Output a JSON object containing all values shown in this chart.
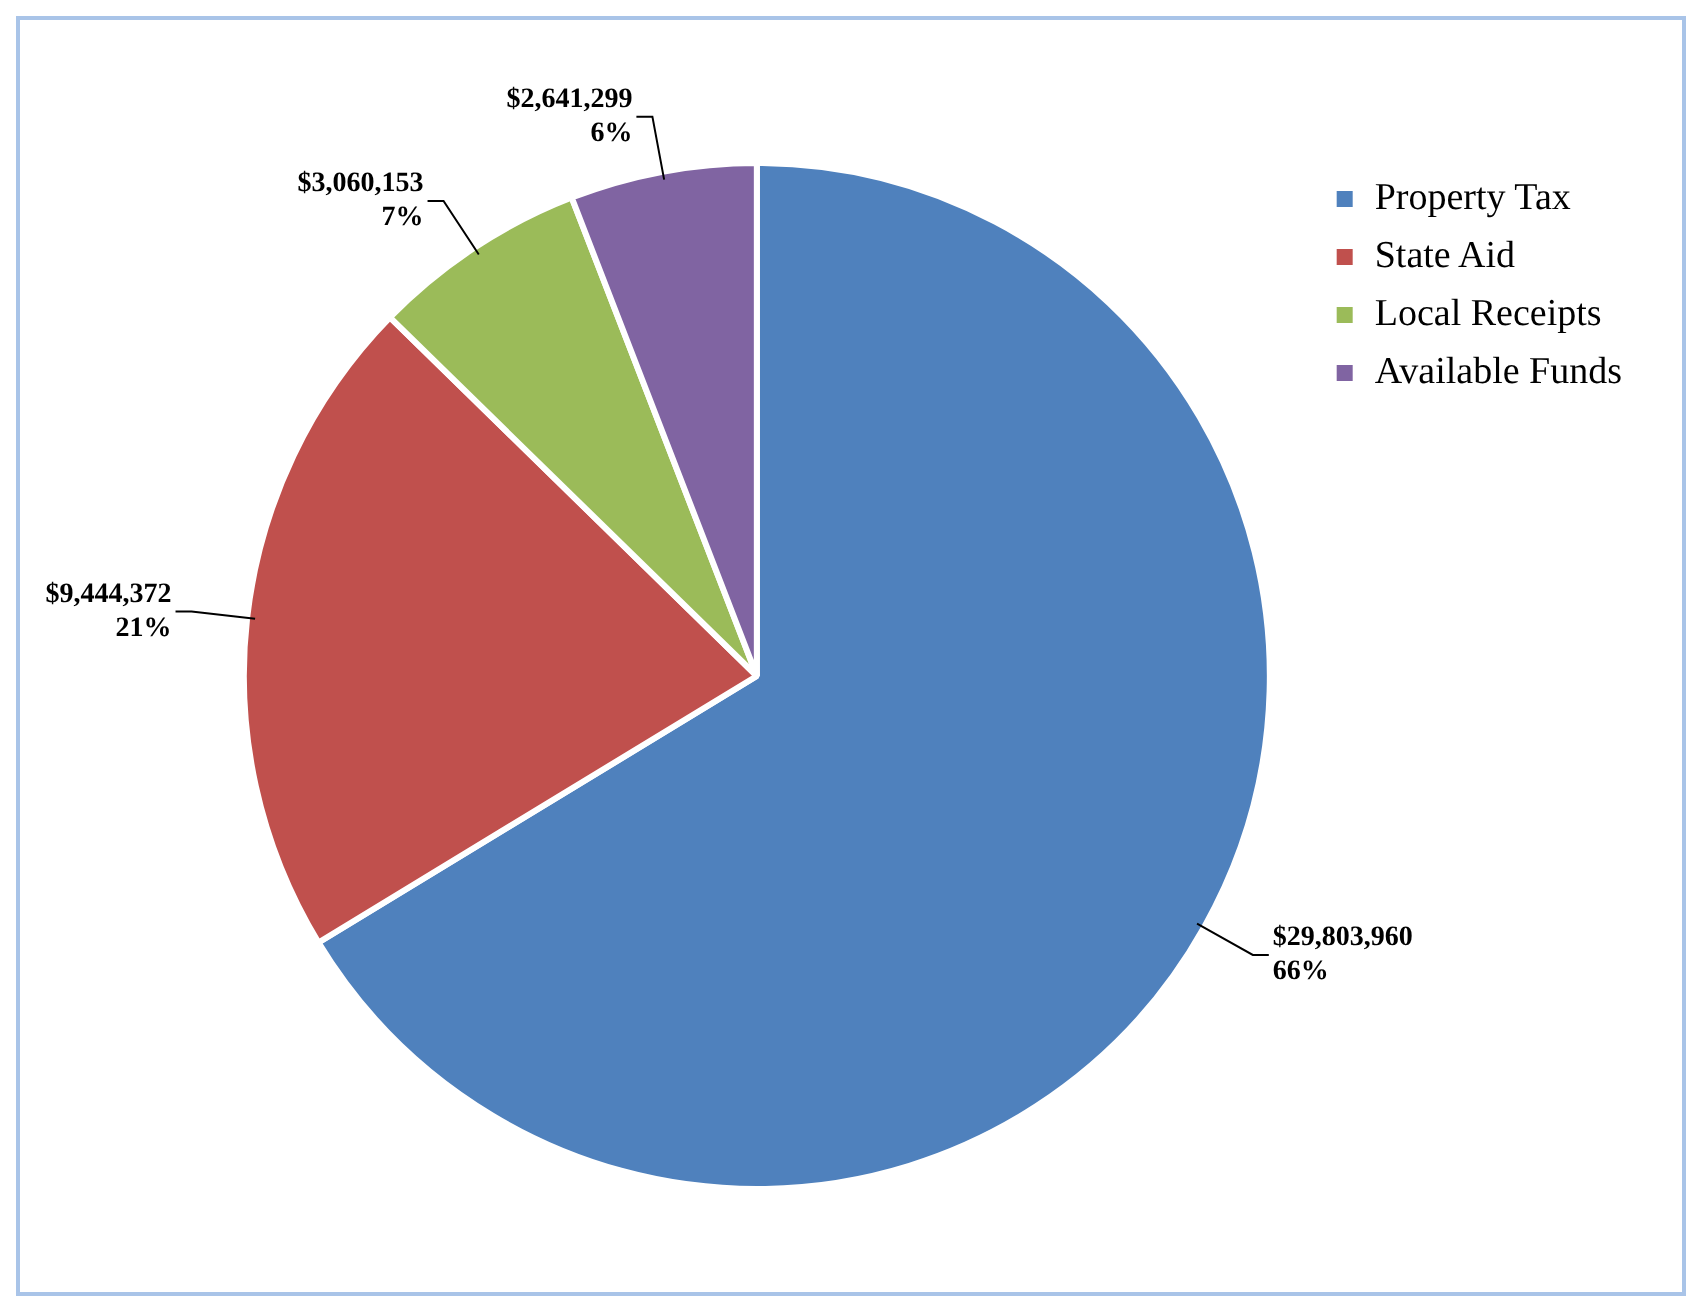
{
  "chart_data": {
    "type": "pie",
    "categories": [
      "Property Tax",
      "State Aid",
      "Local Receipts",
      "Available Funds"
    ],
    "values": [
      29803960,
      9444372,
      3060153,
      2641299
    ],
    "colors": [
      "#4f81bd",
      "#c0504d",
      "#9bbb59",
      "#8064a2"
    ],
    "value_labels": [
      "$29,803,960\n66%",
      "$9,444,372\n21%",
      "$3,060,153\n7%",
      "$2,641,299\n6%"
    ],
    "legend": "top right"
  }
}
